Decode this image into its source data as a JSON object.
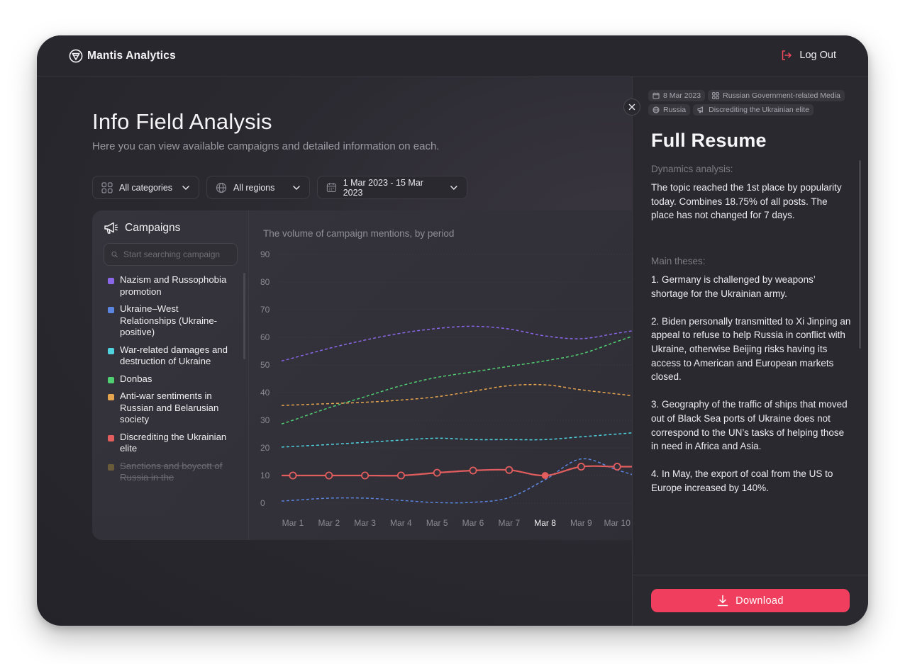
{
  "app": {
    "name": "Mantis Analytics",
    "logout_label": "Log Out"
  },
  "page": {
    "title": "Info Field Analysis",
    "subtitle": "Here you can view available campaigns and detailed information on each."
  },
  "filters": {
    "category": "All categories",
    "region": "All regions",
    "date_range": "1 Mar 2023 - 15 Mar 2023"
  },
  "campaigns": {
    "title": "Campaigns",
    "search_placeholder": "Start searching campaign",
    "items": [
      {
        "label": "Nazism and Russophobia promotion",
        "color": "#8a67e8"
      },
      {
        "label": "Ukraine–West Relationships (Ukraine-positive)",
        "color": "#5b86e0"
      },
      {
        "label": "War-related damages and destruction of Ukraine",
        "color": "#4fd3df"
      },
      {
        "label": "Donbas",
        "color": "#4fcf72"
      },
      {
        "label": "Anti-war sentiments in Russian and Belarusian society",
        "color": "#e5a54f"
      },
      {
        "label": "Discrediting the Ukrainian elite",
        "color": "#e25d5d"
      },
      {
        "label": "Sanctions and boycott of Russia in the",
        "color": "#8f7a3e"
      }
    ]
  },
  "chart_data": {
    "type": "line",
    "title": "The volume of campaign mentions, by period",
    "categories": [
      "Mar 1",
      "Mar 2",
      "Mar 3",
      "Mar 4",
      "Mar 5",
      "Mar 6",
      "Mar 7",
      "Mar 8",
      "Mar 9",
      "Mar 10"
    ],
    "highlighted_category": "Mar 8",
    "ylim": [
      0,
      90
    ],
    "yticks": [
      0,
      10,
      20,
      30,
      40,
      50,
      60,
      70,
      80,
      90
    ],
    "grid": true,
    "series": [
      {
        "name": "Nazism and Russophobia promotion",
        "color": "#8a67e8",
        "dashed": true,
        "values": [
          52.5,
          56,
          59,
          61.5,
          63.2,
          64,
          63,
          60.5,
          59.5,
          61.5
        ]
      },
      {
        "name": "Donbas",
        "color": "#4fcf72",
        "dashed": true,
        "values": [
          30,
          34.5,
          38.5,
          42.5,
          45.5,
          47.5,
          49.5,
          51.5,
          54,
          58.5
        ]
      },
      {
        "name": "Anti-war sentiments in Russian and Belarusian society",
        "color": "#e5a54f",
        "dashed": true,
        "values": [
          35.5,
          36,
          36.5,
          37.3,
          38.5,
          40.5,
          42.5,
          42.8,
          41,
          39.5
        ]
      },
      {
        "name": "War-related damages and destruction of Ukraine",
        "color": "#4fd3df",
        "dashed": true,
        "values": [
          20.5,
          21.2,
          22,
          22.8,
          23.5,
          23,
          23,
          23,
          24,
          25
        ]
      },
      {
        "name": "Ukraine–West Relationships (Ukraine-positive)",
        "color": "#5b86e0",
        "dashed": true,
        "values": [
          1,
          1.8,
          1.8,
          1,
          0.2,
          0.3,
          2,
          8.5,
          16,
          12
        ]
      },
      {
        "name": "Discrediting the Ukrainian elite",
        "color": "#e25d5d",
        "dashed": false,
        "markers": true,
        "values": [
          10,
          10,
          10,
          10,
          11,
          11.8,
          12,
          10,
          13.2,
          13.2
        ]
      }
    ]
  },
  "resume": {
    "tags": [
      {
        "icon": "calendar-icon",
        "label": "8 Mar 2023"
      },
      {
        "icon": "grid-icon",
        "label": "Russian Government-related Media"
      },
      {
        "icon": "globe-icon",
        "label": "Russia"
      },
      {
        "icon": "megaphone-icon",
        "label": "Discrediting the Ukrainian elite"
      }
    ],
    "title": "Full Resume",
    "dynamics_heading": "Dynamics analysis:",
    "dynamics_text": "The topic reached the 1st place by popularity today. Combines 18.75% of all posts. The place has not changed for 7 days.",
    "theses_heading": "Main theses:",
    "theses": [
      "1. Germany is challenged by weapons’ shortage for the Ukrainian army.",
      "2. Biden personally transmitted to Xi Jinping an appeal to refuse to help Russia in conflict with Ukraine, otherwise Beijing risks having its access to American and European markets closed.",
      "3. Geography of the traffic of ships that moved out of Black Sea ports of Ukraine does not correspond to the UN’s tasks of helping those in need in Africa and Asia.",
      "4. In May, the export of coal from the US to Europe increased by 140%."
    ],
    "download_label": "Download"
  }
}
